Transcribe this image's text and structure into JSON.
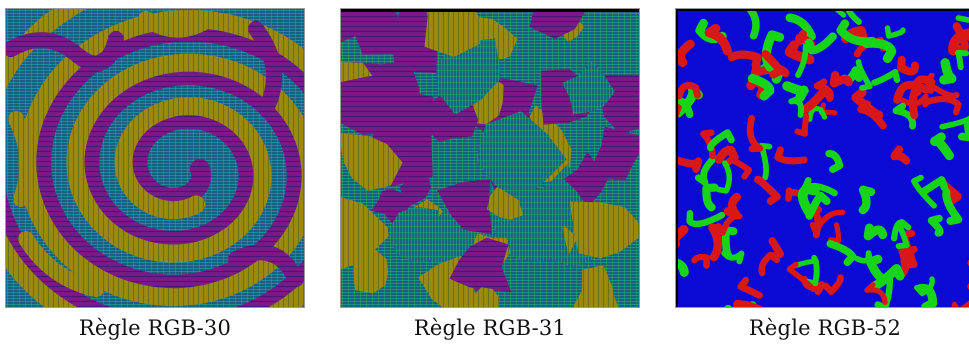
{
  "figures": [
    {
      "caption": "Règle RGB-30",
      "palette": {
        "purple": "#7a1a86",
        "olive": "#9a8a10",
        "teal": "#1e8c96",
        "green": "#1ec03a",
        "red": "#c42020"
      },
      "pattern": "spiral-stripes"
    },
    {
      "caption": "Règle RGB-31",
      "palette": {
        "purple": "#7a1a86",
        "olive": "#9a8a10",
        "teal": "#1e8c96",
        "green": "#1ec03a",
        "red": "#c42020"
      },
      "pattern": "mosaic-domains"
    },
    {
      "caption": "Règle RGB-52",
      "palette": {
        "red": "#d81818",
        "green": "#18d418",
        "blue": "#0a0ad4"
      },
      "pattern": "swirl-domains"
    }
  ]
}
